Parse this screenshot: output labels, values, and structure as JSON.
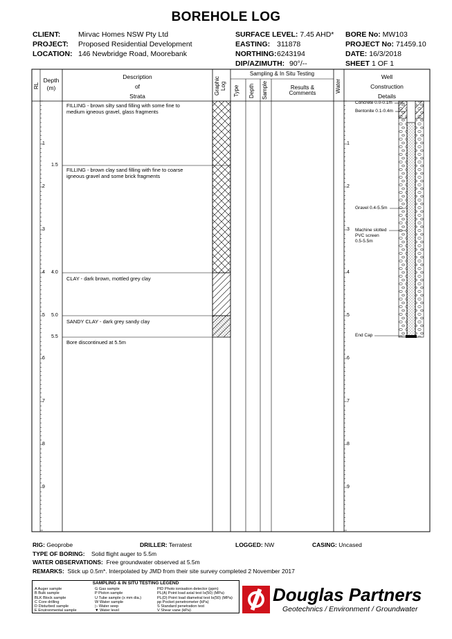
{
  "title": "BOREHOLE LOG",
  "header": {
    "client_label": "CLIENT:",
    "client": "Mirvac Homes NSW Pty Ltd",
    "project_label": "PROJECT:",
    "project": "Proposed Residential Development",
    "location_label": "LOCATION:",
    "location": "146 Newbridge Road, Moorebank",
    "surface_level_label": "SURFACE LEVEL:",
    "surface_level": "7.45 AHD*",
    "easting_label": "EASTING:",
    "easting": "311878",
    "northing_label": "NORTHING:",
    "northing": "6243194",
    "dip_label": "DIP/AZIMUTH:",
    "dip": "90°/--",
    "bore_label": "BORE No:",
    "bore": "MW103",
    "projno_label": "PROJECT No:",
    "projno": "71459.10",
    "date_label": "DATE:",
    "date": "16/3/2018",
    "sheet_label": "SHEET",
    "sheet": "1  OF  1"
  },
  "columns": {
    "rl": "RL",
    "depth": [
      "Depth",
      "(m)"
    ],
    "description": [
      "Description",
      "of",
      "Strata"
    ],
    "graphic": "Graphic Log",
    "sampling": "Sampling & In Situ Testing",
    "type": "Type",
    "sdepth": "Depth",
    "sample": "Sample",
    "results": [
      "Results &",
      "Comments"
    ],
    "water": "Water",
    "well": [
      "Well",
      "Construction",
      "Details"
    ]
  },
  "depth_ticks": [
    "1",
    "2",
    "3",
    "4",
    "5",
    "6",
    "7",
    "8",
    "9"
  ],
  "strata": [
    {
      "depth": "",
      "text": "FILLING - brown silty sand filling with some fine to medium igneous gravel, glass fragments"
    },
    {
      "depth": "1.5",
      "text": "FILLING - brown clay sand filling with fine to coarse igneous gravel and some brick fragments"
    },
    {
      "depth": "4.0",
      "text": "CLAY - dark brown, mottled grey clay"
    },
    {
      "depth": "5.0",
      "text": "SANDY CLAY - dark grey sandy clay"
    },
    {
      "depth": "5.5",
      "text": "Bore discontinued at 5.5m"
    }
  ],
  "well_labels": {
    "concrete": "Concrete 0.0-0.1m",
    "bentonite": "Bentonite 0.1-0.4m",
    "gravel": "Gravel 0.4-5.5m",
    "screen1": "Machine slotted",
    "screen2": "PVC screen",
    "screen3": "0.5-5.5m",
    "endcap": "End Cap"
  },
  "footer": {
    "rig_label": "RIG:",
    "rig": "Geoprobe",
    "driller_label": "DRILLER:",
    "driller": "Terratest",
    "logged_label": "LOGGED:",
    "logged": "NW",
    "casing_label": "CASING:",
    "casing": "Uncased",
    "boring_label": "TYPE OF BORING:",
    "boring": "Solid flight auger to 5.5m",
    "water_label": "WATER OBSERVATIONS:",
    "water": "Free groundwater observed at 5.5m",
    "remarks_label": "REMARKS:",
    "remarks": "Stick up 0.5m*. Interpolated by JMD from their site survey completed 2 November 2017"
  },
  "legend": {
    "title": "SAMPLING & IN SITU TESTING LEGEND",
    "col1": [
      "A     Auger sample",
      "B     Bulk sample",
      "BLK  Block sample",
      "C     Core drilling",
      "D     Disturbed sample",
      "E     Environmental sample"
    ],
    "col2": [
      "G     Gas sample",
      "P     Piston sample",
      "U     Tube sample (x mm dia.)",
      "W    Water sample",
      "▷    Water seep",
      "▼    Water level"
    ],
    "col3": [
      "PID    Photo ionisation detector (ppm)",
      "PL(A) Point load axial test Is(50) (MPa)",
      "PL(D) Point load diametral test Is(50) (MPa)",
      "pp     Pocket penetrometer (kPa)",
      "S       Standard penetration test",
      "V       Shear vane (kPa)"
    ]
  },
  "logo": {
    "name": "Douglas Partners",
    "tagline": "Geotechnics  /  Environment  /  Groundwater",
    "color": "#d0121b"
  }
}
